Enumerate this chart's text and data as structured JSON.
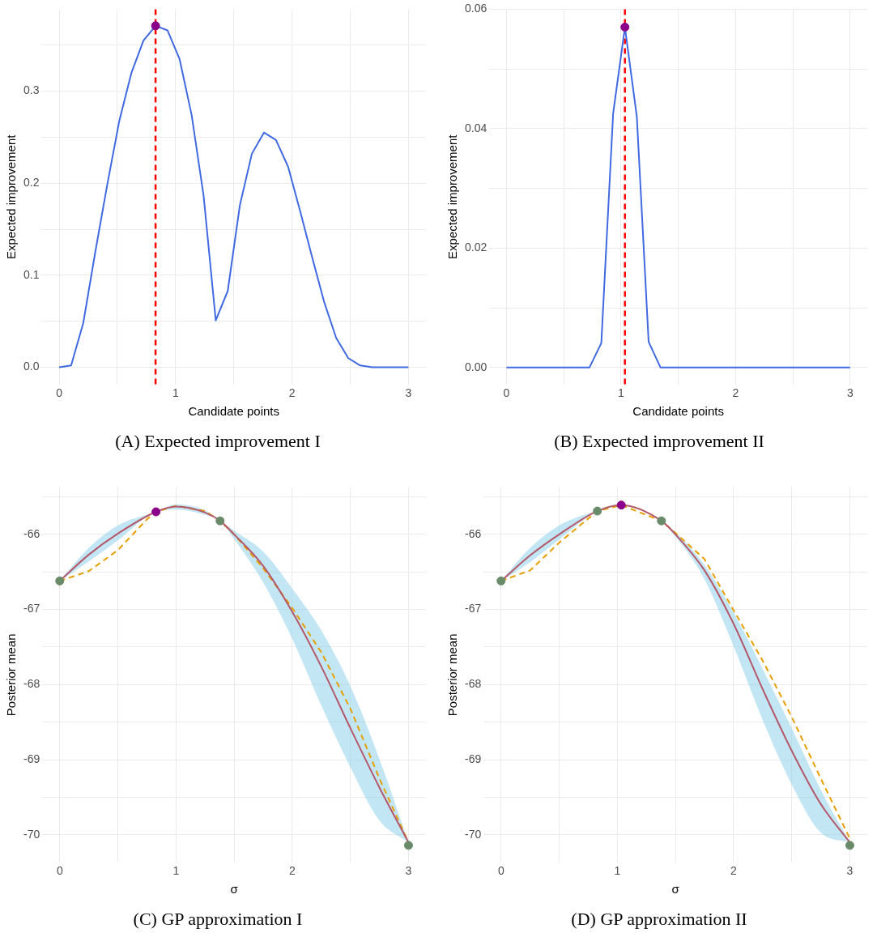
{
  "chart_data": [
    {
      "type": "line",
      "title": "(A) Expected improvement I",
      "xlabel": "Candidate points",
      "ylabel": "Expected improvement",
      "xlim": [
        -0.15,
        3.15
      ],
      "ylim": [
        -0.019,
        0.389
      ],
      "grid": true,
      "legend": false,
      "xticks": [
        0,
        {
          "value": 0.5,
          "label": null
        },
        1,
        {
          "value": 1.5,
          "label": null
        },
        2,
        {
          "value": 2.5,
          "label": null
        },
        3
      ],
      "yticks": [
        {
          "value": 0,
          "label": "0.0"
        },
        {
          "value": 0.05,
          "label": null
        },
        0.1,
        {
          "value": 0.15,
          "label": null
        },
        0.2,
        {
          "value": 0.25,
          "label": null
        },
        0.3,
        {
          "value": 0.35,
          "label": null
        }
      ],
      "ref_lines": [
        {
          "axis": "x",
          "value": 0.828,
          "color": "#ff0000",
          "line_style": "dashed"
        }
      ],
      "series": [
        {
          "type": "line",
          "color": "#4169e1",
          "marker": "none",
          "x": [
            0,
            0.103,
            0.207,
            0.31,
            0.414,
            0.517,
            0.621,
            0.724,
            0.828,
            0.931,
            1.034,
            1.138,
            1.241,
            1.345,
            1.448,
            1.552,
            1.655,
            1.759,
            1.862,
            1.966,
            2.069,
            2.172,
            2.276,
            2.379,
            2.483,
            2.586,
            2.69,
            2.793,
            2.897,
            3
          ],
          "values": [
            0,
            0.002,
            0.048,
            0.125,
            0.199,
            0.268,
            0.32,
            0.355,
            0.371,
            0.366,
            0.335,
            0.274,
            0.186,
            0.051,
            0.083,
            0.176,
            0.232,
            0.255,
            0.247,
            0.218,
            0.17,
            0.12,
            0.071,
            0.032,
            0.01,
            0.002,
            0,
            0,
            0,
            0
          ]
        },
        {
          "type": "scatter",
          "color": "#8b008b",
          "marker": "circle",
          "x": [
            0.828
          ],
          "values": [
            0.371
          ]
        }
      ]
    },
    {
      "type": "line",
      "title": "(B) Expected improvement II",
      "xlabel": "Candidate points",
      "ylabel": "Expected improvement",
      "xlim": [
        -0.15,
        3.15
      ],
      "ylim": [
        -0.0029,
        0.06
      ],
      "grid": true,
      "legend": false,
      "xticks": [
        0,
        {
          "value": 0.5,
          "label": null
        },
        1,
        {
          "value": 1.5,
          "label": null
        },
        2,
        {
          "value": 2.5,
          "label": null
        },
        3
      ],
      "yticks": [
        {
          "value": 0,
          "label": "0.00"
        },
        {
          "value": 0.01,
          "label": null
        },
        0.02,
        {
          "value": 0.03,
          "label": null
        },
        0.04,
        {
          "value": 0.05,
          "label": null
        },
        0.06
      ],
      "ref_lines": [
        {
          "axis": "x",
          "value": 1.034,
          "color": "#ff0000",
          "line_style": "dashed"
        }
      ],
      "series": [
        {
          "type": "line",
          "color": "#4169e1",
          "marker": "none",
          "x": [
            0,
            0.103,
            0.207,
            0.31,
            0.414,
            0.517,
            0.621,
            0.724,
            0.828,
            0.931,
            1.034,
            1.138,
            1.241,
            1.345,
            1.448,
            1.552,
            1.655,
            1.759,
            1.862,
            1.966,
            2.069,
            2.172,
            2.276,
            2.379,
            2.483,
            2.586,
            2.69,
            2.793,
            2.897,
            3
          ],
          "values": [
            0,
            0,
            0,
            0,
            0,
            0,
            0,
            0,
            0.0041,
            0.0425,
            0.057,
            0.042,
            0.0043,
            0,
            0,
            0,
            0,
            0,
            0,
            0,
            0,
            0,
            0,
            0,
            0,
            0,
            0,
            0,
            0,
            0
          ]
        },
        {
          "type": "scatter",
          "color": "#8b008b",
          "marker": "circle",
          "x": [
            1.034
          ],
          "values": [
            0.057
          ]
        }
      ]
    },
    {
      "type": "line",
      "title": "(C) GP approximation I",
      "xlabel": "σ",
      "ylabel": "Posterior mean",
      "xlim": [
        -0.15,
        3.15
      ],
      "ylim": [
        -70.37,
        -65.37
      ],
      "grid": true,
      "legend": false,
      "xticks": [
        0,
        {
          "value": 0.5,
          "label": null
        },
        1,
        {
          "value": 1.5,
          "label": null
        },
        2,
        {
          "value": 2.5,
          "label": null
        },
        3
      ],
      "yticks": [
        -70,
        {
          "value": -69.5,
          "label": null
        },
        -69,
        {
          "value": -68.5,
          "label": null
        },
        -68,
        {
          "value": -67.5,
          "label": null
        },
        -67,
        {
          "value": -66.5,
          "label": null
        },
        -66,
        {
          "value": -65.5,
          "label": null
        }
      ],
      "series": [
        {
          "type": "line",
          "color": "#b4596b",
          "marker": "none",
          "x": [
            0,
            0.25,
            0.5,
            0.828,
            1,
            1.25,
            1.379,
            1.5,
            1.75,
            2,
            2.25,
            2.5,
            2.75,
            3
          ],
          "values": [
            -66.62,
            -66.27,
            -65.99,
            -65.7,
            -65.63,
            -65.71,
            -65.82,
            -66,
            -66.42,
            -67.03,
            -67.76,
            -68.58,
            -69.37,
            -70.1
          ],
          "lower": [
            -66.62,
            -66.36,
            -66.08,
            -65.7,
            -65.67,
            -65.74,
            -65.82,
            -66.06,
            -66.64,
            -67.39,
            -68.28,
            -69.1,
            -69.81,
            -70.1
          ],
          "upper": [
            -66.62,
            -66.18,
            -65.88,
            -65.7,
            -65.6,
            -65.68,
            -65.82,
            -65.95,
            -66.23,
            -66.72,
            -67.28,
            -68.02,
            -68.99,
            -70.1
          ]
        },
        {
          "type": "line",
          "color": "#e69f00",
          "marker": "none",
          "line_style": "dashed",
          "x": [
            0,
            0.25,
            0.5,
            0.75,
            0.828,
            1,
            1.25,
            1.379,
            1.5,
            1.75,
            2,
            2.25,
            2.5,
            2.75,
            3
          ],
          "values": [
            -66.62,
            -66.49,
            -66.21,
            -65.8,
            -65.7,
            -65.62,
            -65.69,
            -65.82,
            -66,
            -66.45,
            -66.98,
            -67.57,
            -68.32,
            -69.25,
            -70.1
          ]
        },
        {
          "type": "scatter",
          "color": "#698b69",
          "marker": "circle",
          "x": [
            0,
            1.379,
            3
          ],
          "values": [
            -66.62,
            -65.82,
            -70.14
          ]
        },
        {
          "type": "scatter",
          "color": "#8b008b",
          "marker": "circle",
          "x": [
            0.828
          ],
          "values": [
            -65.7
          ]
        }
      ]
    },
    {
      "type": "line",
      "title": "(D) GP approximation II",
      "xlabel": "σ",
      "ylabel": "Posterior mean",
      "xlim": [
        -0.15,
        3.15
      ],
      "ylim": [
        -70.37,
        -65.37
      ],
      "grid": true,
      "legend": false,
      "xticks": [
        0,
        {
          "value": 0.5,
          "label": null
        },
        1,
        {
          "value": 1.5,
          "label": null
        },
        2,
        {
          "value": 2.5,
          "label": null
        },
        3
      ],
      "yticks": [
        -70,
        {
          "value": -69.5,
          "label": null
        },
        -69,
        {
          "value": -68.5,
          "label": null
        },
        -68,
        {
          "value": -67.5,
          "label": null
        },
        -67,
        {
          "value": -66.5,
          "label": null
        },
        -66,
        {
          "value": -65.5,
          "label": null
        }
      ],
      "series": [
        {
          "type": "line",
          "color": "#b4596b",
          "marker": "none",
          "x": [
            0,
            0.25,
            0.5,
            0.828,
            1.034,
            1.379,
            1.5,
            1.75,
            2,
            2.25,
            2.5,
            2.75,
            3
          ],
          "values": [
            -66.62,
            -66.28,
            -66,
            -65.69,
            -65.61,
            -65.82,
            -66,
            -66.48,
            -67.19,
            -68.06,
            -68.88,
            -69.59,
            -70.1
          ],
          "lower": [
            -66.62,
            -66.37,
            -66.07,
            -65.69,
            -65.61,
            -65.82,
            -66.03,
            -66.6,
            -67.49,
            -68.47,
            -69.33,
            -69.97,
            -70.1
          ],
          "upper": [
            -66.62,
            -66.18,
            -65.88,
            -65.69,
            -65.61,
            -65.82,
            -65.97,
            -66.41,
            -67.04,
            -67.79,
            -68.58,
            -69.4,
            -70.1
          ]
        },
        {
          "type": "line",
          "color": "#e69f00",
          "marker": "none",
          "line_style": "dashed",
          "x": [
            0,
            0.25,
            0.5,
            0.828,
            1.034,
            1.379,
            1.5,
            1.75,
            2,
            2.25,
            2.5,
            2.75,
            3
          ],
          "values": [
            -66.62,
            -66.48,
            -66.11,
            -65.69,
            -65.61,
            -65.82,
            -65.98,
            -66.33,
            -67.01,
            -67.68,
            -68.43,
            -69.25,
            -70.05
          ]
        },
        {
          "type": "scatter",
          "color": "#698b69",
          "marker": "circle",
          "x": [
            0,
            0.828,
            1.379,
            3
          ],
          "values": [
            -66.62,
            -65.69,
            -65.82,
            -70.14
          ]
        },
        {
          "type": "scatter",
          "color": "#8b008b",
          "marker": "circle",
          "x": [
            1.034
          ],
          "values": [
            -65.61
          ]
        }
      ]
    }
  ]
}
